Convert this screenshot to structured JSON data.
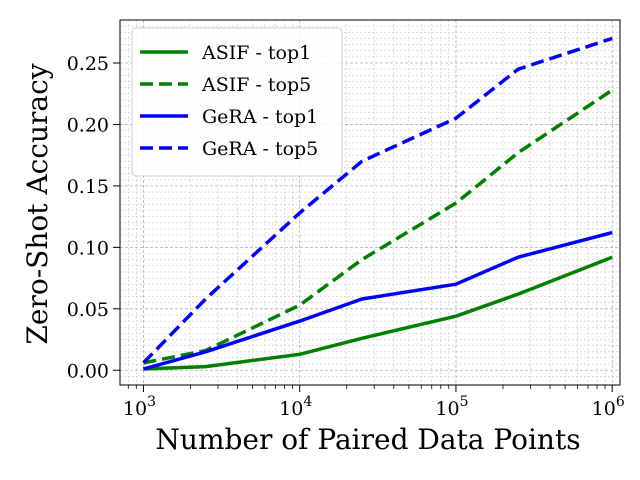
{
  "chart_data": {
    "type": "line",
    "title": "",
    "xlabel": "Number of Paired Data Points",
    "ylabel": "Zero-Shot Accuracy",
    "xscale": "log",
    "xlim_log10": [
      2.85,
      6.05
    ],
    "ylim": [
      -0.012,
      0.285
    ],
    "grid": true,
    "legend_position": "top-left",
    "x_ticks": [
      {
        "value": 1000,
        "base": "10",
        "exp": "3"
      },
      {
        "value": 10000,
        "base": "10",
        "exp": "4"
      },
      {
        "value": 100000,
        "base": "10",
        "exp": "5"
      },
      {
        "value": 1000000,
        "base": "10",
        "exp": "6"
      }
    ],
    "y_ticks": [
      {
        "value": 0.0,
        "label": "0.00"
      },
      {
        "value": 0.05,
        "label": "0.05"
      },
      {
        "value": 0.1,
        "label": "0.10"
      },
      {
        "value": 0.15,
        "label": "0.15"
      },
      {
        "value": 0.2,
        "label": "0.20"
      },
      {
        "value": 0.25,
        "label": "0.25"
      }
    ],
    "x": [
      1000,
      2500,
      10000,
      25000,
      100000,
      250000,
      1000000
    ],
    "series": [
      {
        "name": "ASIF - top1",
        "color": "#008000",
        "dash": "solid",
        "values": [
          0.001,
          0.003,
          0.013,
          0.026,
          0.044,
          0.062,
          0.092
        ]
      },
      {
        "name": "ASIF - top5",
        "color": "#008000",
        "dash": "dashed",
        "values": [
          0.006,
          0.016,
          0.053,
          0.09,
          0.136,
          0.177,
          0.228
        ]
      },
      {
        "name": "GeRA - top1",
        "color": "#0000ff",
        "dash": "solid",
        "values": [
          0.001,
          0.015,
          0.04,
          0.058,
          0.07,
          0.092,
          0.112
        ]
      },
      {
        "name": "GeRA - top5",
        "color": "#0000ff",
        "dash": "dashed",
        "values": [
          0.006,
          0.058,
          0.128,
          0.17,
          0.205,
          0.245,
          0.27
        ]
      }
    ]
  }
}
